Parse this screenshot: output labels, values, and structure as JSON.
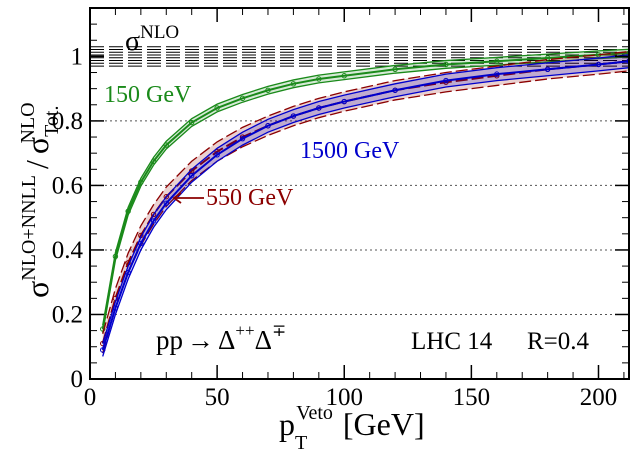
{
  "chart_data": {
    "type": "line",
    "title": "",
    "xlabel_main": "p",
    "xlabel_sub": "T",
    "xlabel_sup": "Veto",
    "xlabel_unit": "[GeV]",
    "ylabel_num_base": "σ",
    "ylabel_num_sup": "NLO+NNLL",
    "ylabel_slash": "/",
    "ylabel_den_base": "σ",
    "ylabel_den_sup": "NLO",
    "ylabel_den_sub": "Tot.",
    "xlim": [
      0,
      212
    ],
    "ylim": [
      0,
      1.15
    ],
    "x_ticks": [
      0,
      50,
      100,
      150,
      200
    ],
    "x_tick_labels": [
      "0",
      "50",
      "100",
      "150",
      "200"
    ],
    "y_ticks": [
      0,
      0.2,
      0.4,
      0.6,
      0.8,
      1.0
    ],
    "y_tick_labels": [
      "0",
      "0.2",
      "0.4",
      "0.6",
      "0.8",
      "1"
    ],
    "y_gridlines": [
      0.2,
      0.4,
      0.6,
      0.8
    ],
    "grid": "dotted horizontal at 0.2 / 0.4 / 0.6 / 0.8",
    "reference": {
      "label_base": "σ",
      "label_sup": "NLO",
      "value": 1.0,
      "band": [
        0.97,
        1.03
      ],
      "color": "#000000"
    },
    "x": [
      5,
      10,
      15,
      20,
      25,
      30,
      40,
      50,
      60,
      70,
      80,
      90,
      100,
      120,
      140,
      160,
      180,
      200,
      212
    ],
    "series": [
      {
        "name": "150 GeV",
        "color": "#1a8a1a",
        "values": [
          0.155,
          0.38,
          0.52,
          0.61,
          0.675,
          0.725,
          0.795,
          0.84,
          0.87,
          0.895,
          0.915,
          0.93,
          0.94,
          0.96,
          0.975,
          0.985,
          0.995,
          1.005,
          1.01
        ],
        "band_halfwidth": 0.012
      },
      {
        "name": "550 GeV",
        "color": "#8b0000",
        "values": [
          0.11,
          0.25,
          0.36,
          0.445,
          0.51,
          0.565,
          0.645,
          0.705,
          0.75,
          0.785,
          0.815,
          0.84,
          0.86,
          0.895,
          0.92,
          0.94,
          0.96,
          0.975,
          0.985
        ],
        "band_halfwidth": 0.03
      },
      {
        "name": "1500 GeV",
        "color": "#0000cc",
        "values": [
          0.09,
          0.22,
          0.33,
          0.42,
          0.49,
          0.545,
          0.63,
          0.695,
          0.745,
          0.785,
          0.815,
          0.84,
          0.86,
          0.895,
          0.925,
          0.945,
          0.96,
          0.975,
          0.985
        ],
        "band_halfwidth": 0.02
      }
    ],
    "annotations": {
      "process_prefix": "pp",
      "arrow": "→",
      "delta1_base": "Δ",
      "delta1_sup": "++",
      "delta2_base": "Δ",
      "delta2_sup": "∓",
      "collider": "LHC 14",
      "radius": "R=0.4"
    }
  }
}
